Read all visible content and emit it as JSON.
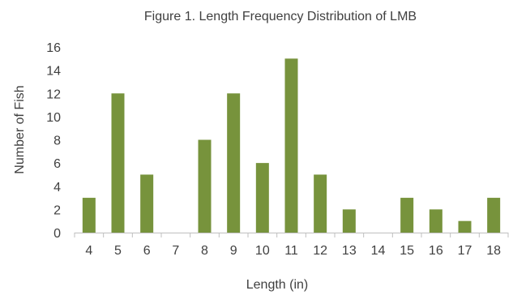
{
  "chart_data": {
    "type": "bar",
    "title": "Figure 1. Length Frequency Distribution of LMB",
    "xlabel": "Length (in)",
    "ylabel": "Number of Fish",
    "categories": [
      "4",
      "5",
      "6",
      "7",
      "8",
      "9",
      "10",
      "11",
      "12",
      "13",
      "14",
      "15",
      "16",
      "17",
      "18"
    ],
    "values": [
      3,
      12,
      5,
      0,
      8,
      12,
      6,
      15,
      5,
      2,
      0,
      3,
      2,
      1,
      3
    ],
    "ylim": [
      0,
      16
    ],
    "yticks": [
      0,
      2,
      4,
      6,
      8,
      10,
      12,
      14,
      16
    ],
    "bar_color": "#77933c",
    "grid": false,
    "legend": "none"
  }
}
